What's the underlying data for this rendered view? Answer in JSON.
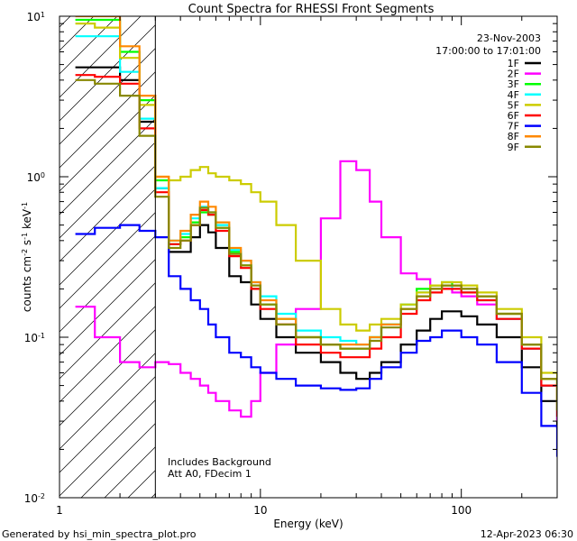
{
  "chart_data": {
    "type": "line",
    "title": "Count Spectra for RHESSI Front Segments",
    "xlabel": "Energy (keV)",
    "ylabel": "counts cm-2 s-1 keV-1",
    "ylabel_parts": {
      "base": "counts cm",
      "exp1": "-2",
      "mid": " s",
      "exp2": "-1",
      "mid2": " keV",
      "exp3": "-1"
    },
    "x_scale": "log",
    "y_scale": "log",
    "xlim": [
      1,
      300
    ],
    "ylim": [
      0.01,
      10
    ],
    "x_ticks": [
      {
        "value": 1,
        "label": "1"
      },
      {
        "value": 10,
        "label": "10"
      },
      {
        "value": 100,
        "label": "100"
      }
    ],
    "y_ticks": [
      {
        "value": 10,
        "base": "10",
        "exp": "1"
      },
      {
        "value": 1,
        "base": "10",
        "exp": "0"
      },
      {
        "value": 0.1,
        "base": "10",
        "exp": "-1"
      },
      {
        "value": 0.01,
        "base": "10",
        "exp": "-2"
      }
    ],
    "date": "23-Nov-2003",
    "time_range": "17:00:00 to 17:01:00",
    "notes": [
      "Includes Background",
      "Att A0, FDecim 1"
    ],
    "attenuator_threshold_keV": 3,
    "x": [
      1.2,
      1.5,
      2.0,
      2.5,
      3.0,
      3.5,
      4.0,
      4.5,
      5.0,
      5.5,
      6.0,
      7.0,
      8.0,
      9.0,
      10,
      12,
      15,
      20,
      25,
      30,
      35,
      40,
      50,
      60,
      70,
      80,
      90,
      100,
      120,
      150,
      200,
      250,
      300
    ],
    "series": [
      {
        "name": "1F",
        "color": "#000000",
        "values": [
          4.8,
          4.8,
          4.0,
          2.2,
          0.85,
          0.34,
          0.34,
          0.42,
          0.5,
          0.45,
          0.36,
          0.24,
          0.22,
          0.16,
          0.13,
          0.1,
          0.08,
          0.07,
          0.06,
          0.055,
          0.06,
          0.07,
          0.09,
          0.11,
          0.13,
          0.145,
          0.145,
          0.135,
          0.12,
          0.1,
          0.065,
          0.04,
          0.027
        ]
      },
      {
        "name": "2F",
        "color": "#ff00ff",
        "values": [
          0.155,
          0.1,
          0.07,
          0.065,
          0.07,
          0.068,
          0.06,
          0.055,
          0.05,
          0.045,
          0.04,
          0.035,
          0.032,
          0.04,
          0.06,
          0.09,
          0.15,
          0.55,
          1.25,
          1.1,
          0.7,
          0.42,
          0.25,
          0.23,
          0.21,
          0.2,
          0.19,
          0.18,
          0.16,
          0.13,
          0.085,
          0.05,
          0.03
        ]
      },
      {
        "name": "3F",
        "color": "#00ff00",
        "values": [
          9.5,
          9.5,
          6.0,
          3.0,
          0.95,
          0.38,
          0.42,
          0.52,
          0.6,
          0.58,
          0.48,
          0.34,
          0.28,
          0.2,
          0.16,
          0.13,
          0.1,
          0.09,
          0.085,
          0.085,
          0.1,
          0.12,
          0.16,
          0.2,
          0.21,
          0.22,
          0.21,
          0.2,
          0.18,
          0.14,
          0.09,
          0.055,
          0.035
        ]
      },
      {
        "name": "4F",
        "color": "#00ffff",
        "values": [
          7.5,
          7.5,
          4.5,
          2.3,
          0.85,
          0.4,
          0.44,
          0.55,
          0.65,
          0.6,
          0.5,
          0.35,
          0.3,
          0.22,
          0.18,
          0.14,
          0.11,
          0.1,
          0.095,
          0.09,
          0.1,
          0.12,
          0.16,
          0.19,
          0.2,
          0.21,
          0.2,
          0.19,
          0.17,
          0.13,
          0.085,
          0.05,
          0.032
        ]
      },
      {
        "name": "5F",
        "color": "#cccc00",
        "values": [
          9.0,
          8.5,
          5.5,
          2.8,
          1.0,
          0.95,
          1.0,
          1.1,
          1.15,
          1.05,
          1.0,
          0.95,
          0.9,
          0.8,
          0.7,
          0.5,
          0.3,
          0.15,
          0.12,
          0.11,
          0.12,
          0.13,
          0.16,
          0.19,
          0.21,
          0.22,
          0.22,
          0.21,
          0.19,
          0.15,
          0.1,
          0.06,
          0.04
        ]
      },
      {
        "name": "6F",
        "color": "#ff0000",
        "values": [
          4.3,
          4.2,
          3.8,
          2.0,
          0.8,
          0.38,
          0.4,
          0.5,
          0.62,
          0.58,
          0.46,
          0.32,
          0.27,
          0.2,
          0.15,
          0.12,
          0.09,
          0.08,
          0.075,
          0.075,
          0.085,
          0.1,
          0.14,
          0.17,
          0.19,
          0.2,
          0.2,
          0.19,
          0.17,
          0.13,
          0.085,
          0.05,
          0.032
        ]
      },
      {
        "name": "7F",
        "color": "#0000ff",
        "values": [
          0.44,
          0.48,
          0.5,
          0.46,
          0.42,
          0.24,
          0.2,
          0.17,
          0.15,
          0.12,
          0.1,
          0.08,
          0.075,
          0.065,
          0.06,
          0.055,
          0.05,
          0.048,
          0.047,
          0.048,
          0.055,
          0.065,
          0.08,
          0.095,
          0.1,
          0.11,
          0.11,
          0.1,
          0.09,
          0.07,
          0.045,
          0.028,
          0.018
        ]
      },
      {
        "name": "8F",
        "color": "#ff8800",
        "values": [
          10,
          10,
          6.5,
          3.2,
          1.0,
          0.4,
          0.46,
          0.58,
          0.7,
          0.65,
          0.52,
          0.36,
          0.3,
          0.22,
          0.17,
          0.13,
          0.1,
          0.09,
          0.09,
          0.09,
          0.1,
          0.12,
          0.15,
          0.18,
          0.2,
          0.21,
          0.21,
          0.2,
          0.18,
          0.14,
          0.09,
          0.055,
          0.035
        ]
      },
      {
        "name": "9F",
        "color": "#888800",
        "values": [
          4.0,
          3.8,
          3.2,
          1.8,
          0.75,
          0.36,
          0.4,
          0.5,
          0.64,
          0.6,
          0.48,
          0.33,
          0.28,
          0.21,
          0.16,
          0.12,
          0.1,
          0.09,
          0.085,
          0.085,
          0.095,
          0.115,
          0.15,
          0.18,
          0.2,
          0.21,
          0.21,
          0.2,
          0.18,
          0.14,
          0.09,
          0.055,
          0.035
        ]
      }
    ]
  },
  "footer": {
    "generator": "Generated by hsi_min_spectra_plot.pro",
    "timestamp": "12-Apr-2023 06:30"
  }
}
